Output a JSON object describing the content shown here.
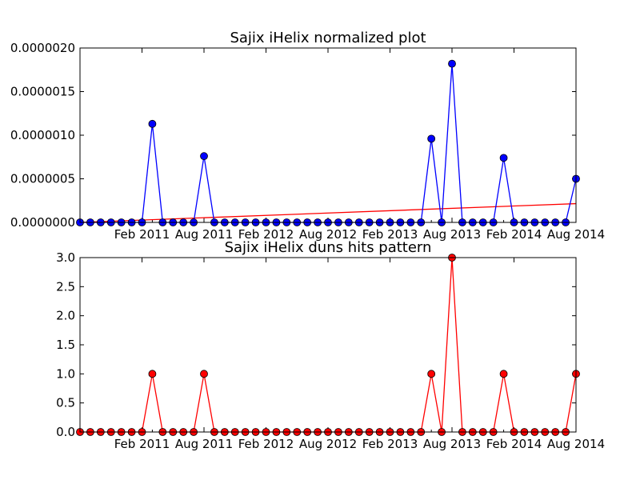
{
  "chart_data": [
    {
      "type": "line",
      "title": "Sajix iHelix normalized plot",
      "xlabel": "",
      "ylabel": "",
      "x_tick_labels": [
        "Feb 2011",
        "Aug 2011",
        "Feb 2012",
        "Aug 2012",
        "Feb 2013",
        "Aug 2013",
        "Feb 2014",
        "Aug 2014"
      ],
      "y_tick_labels": [
        "0.0000000",
        "0.0000005",
        "0.0000010",
        "0.0000015",
        "0.0000020"
      ],
      "ylim": [
        0,
        2e-06
      ],
      "grid": false,
      "series": [
        {
          "color": "#0000ff",
          "marker": "circle",
          "values": [
            0,
            0,
            0,
            0,
            0,
            0,
            0,
            1.13e-06,
            0,
            0,
            0,
            0,
            7.6e-07,
            0,
            0,
            0,
            0,
            0,
            0,
            0,
            0,
            0,
            0,
            0,
            0,
            0,
            0,
            0,
            0,
            0,
            0,
            0,
            0,
            0,
            9.6e-07,
            0,
            1.82e-06,
            0,
            0,
            0,
            0,
            7.4e-07,
            0,
            0,
            0,
            0,
            0,
            0,
            5e-07
          ]
        },
        {
          "color": "#ff0000",
          "marker": "none",
          "trend_start": 0,
          "trend_end": 2.15e-07
        }
      ]
    },
    {
      "type": "line",
      "title": "Sajix iHelix duns hits pattern",
      "xlabel": "",
      "ylabel": "",
      "x_tick_labels": [
        "Feb 2011",
        "Aug 2011",
        "Feb 2012",
        "Aug 2012",
        "Feb 2013",
        "Aug 2013",
        "Feb 2014",
        "Aug 2014"
      ],
      "y_tick_labels": [
        "0.0",
        "0.5",
        "1.0",
        "1.5",
        "2.0",
        "2.5",
        "3.0"
      ],
      "ylim": [
        0,
        3
      ],
      "grid": false,
      "series": [
        {
          "color": "#ff0000",
          "marker": "circle",
          "values": [
            0,
            0,
            0,
            0,
            0,
            0,
            0,
            1,
            0,
            0,
            0,
            0,
            1,
            0,
            0,
            0,
            0,
            0,
            0,
            0,
            0,
            0,
            0,
            0,
            0,
            0,
            0,
            0,
            0,
            0,
            0,
            0,
            0,
            0,
            1,
            0,
            3,
            0,
            0,
            0,
            0,
            1,
            0,
            0,
            0,
            0,
            0,
            0,
            1
          ]
        }
      ]
    }
  ]
}
